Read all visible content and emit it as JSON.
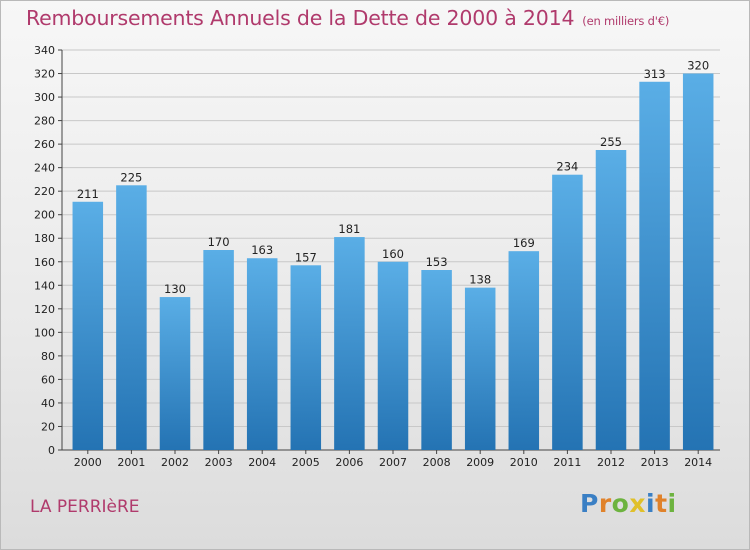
{
  "chart_data": {
    "type": "bar",
    "title": "Remboursements Annuels de la Dette de 2000 à 2014",
    "subtitle": "(en milliers d'€)",
    "categories": [
      "2000",
      "2001",
      "2002",
      "2003",
      "2004",
      "2005",
      "2006",
      "2007",
      "2008",
      "2009",
      "2010",
      "2011",
      "2012",
      "2013",
      "2014"
    ],
    "values": [
      211,
      225,
      130,
      170,
      163,
      157,
      181,
      160,
      153,
      138,
      169,
      234,
      255,
      313,
      320
    ],
    "ylim": [
      0,
      340
    ],
    "yticks": [
      0,
      20,
      40,
      60,
      80,
      100,
      120,
      140,
      160,
      180,
      200,
      220,
      240,
      260,
      280,
      300,
      320,
      340
    ],
    "grid": true,
    "colors": {
      "bar_light": "#5aaee6",
      "bar_dark": "#2473b3",
      "grid": "#c8c8c8"
    }
  },
  "footer": {
    "commune": "LA PERRIèRE",
    "logo_letters": [
      {
        "ch": "P",
        "color": "#3a7fc4"
      },
      {
        "ch": "r",
        "color": "#e0822a"
      },
      {
        "ch": "o",
        "color": "#6db33f"
      },
      {
        "ch": "x",
        "color": "#e0c02a"
      },
      {
        "ch": "i",
        "color": "#3a7fc4"
      },
      {
        "ch": "t",
        "color": "#e0822a"
      },
      {
        "ch": "i",
        "color": "#6db33f"
      }
    ]
  }
}
